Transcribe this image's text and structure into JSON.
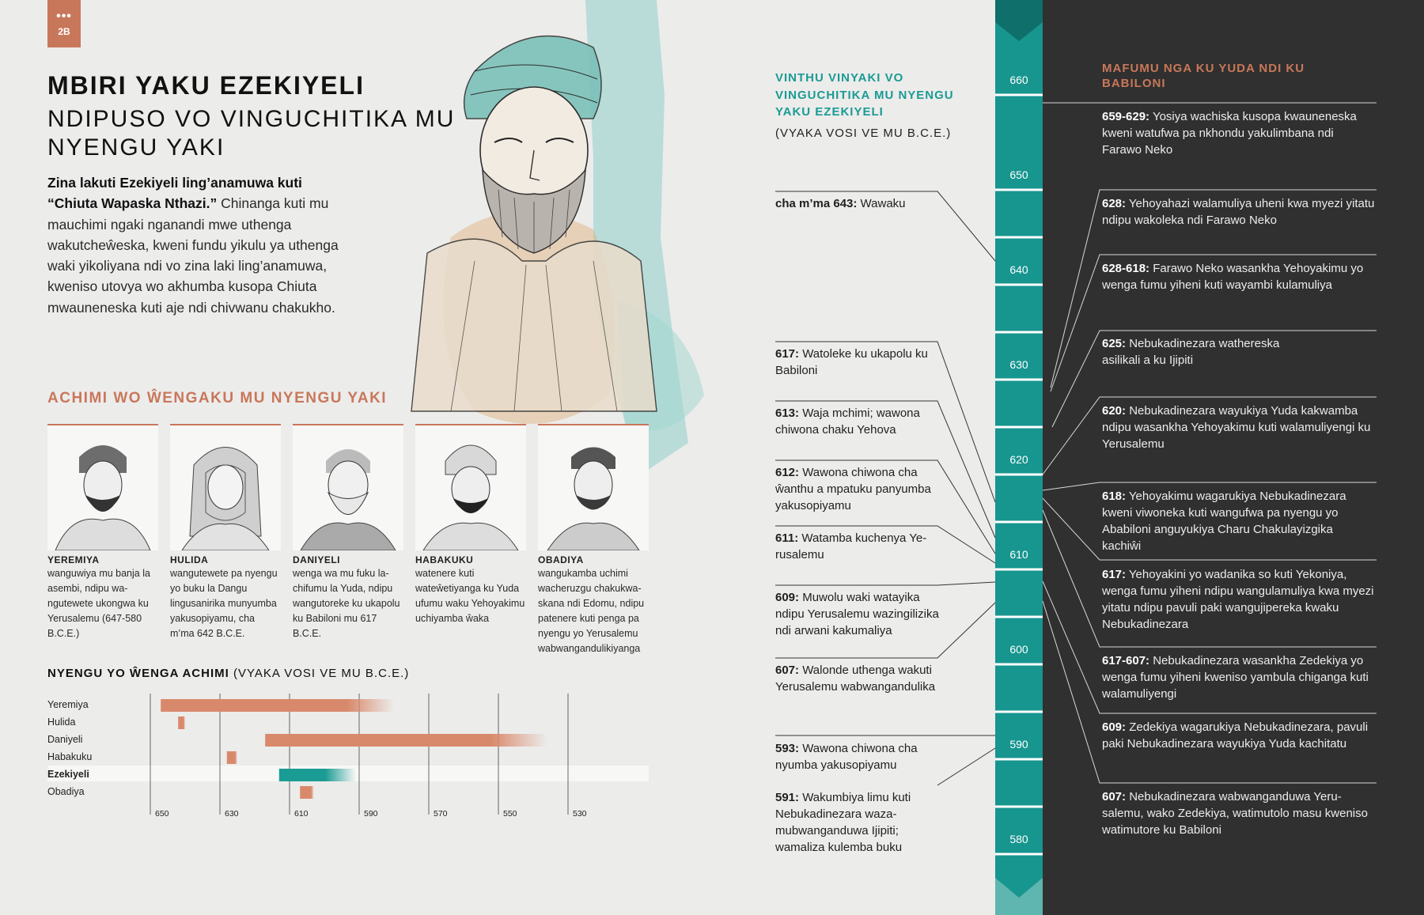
{
  "badge": {
    "dots": "•••",
    "number": "2B"
  },
  "title": "MBIRI YAKU EZEKIYELI",
  "subtitle": "NDIPUSO VO VINGUCHITIKA MU NYENGU YAKI",
  "intro": {
    "bold": "Zina lakuti Ezekiyeli ling’anamuwa kuti “Chiuta Wapaska Nthazi.”",
    "text": " Chinanga kuti mu mauchimi ngaki nganandi mwe uthenga wakutcheŵeska, kweni fundu yikulu ya uthenga waki yikoliyana ndi vo zina laki ling’anamuwa, kweniso utovya wo akhumba kusopa Chiuta mwauneneska kuti aje ndi chivwanu chakukho."
  },
  "prophets_heading": "ACHIMI WO ŴENGAKU MU NYENGU YAKI",
  "prophets": [
    {
      "name": "YEREMIYA",
      "desc": "wanguwiya mu banja la asembi, ndipu wa­ngutewete ukongwa ku Yerusalemu (647-580 B.C.E.)"
    },
    {
      "name": "HULIDA",
      "desc": "wangutewete pa nye­ngu yo buku la Dangu lingusanirika munyu­mba yakusopiyamu, cha m’ma 642 B.C.E."
    },
    {
      "name": "DANIYELI",
      "desc": "wenga wa mu fuku la­chifumu la Yuda, ndipu wangutoreke ku ukapo­lu ku Babiloni mu 617 B.C.E."
    },
    {
      "name": "HABAKUKU",
      "desc": "watenere kuti wateŵetiyanga ku Yuda ufumu waku Yehoyakimu uchiya­mba ŵaka"
    },
    {
      "name": "OBADIYA",
      "desc": "wangukamba uchimi wacheruzgu chakukwa­skana ndi Edomu, ndipu patenere kuti penga pa nyengu yo Yerusalemu wabwanga­ndulikiyanga"
    }
  ],
  "gantt_title": {
    "bold": "NYENGU YO ŴENGA ACHIMI",
    "rest": " (VYAKA VOSI VE MU B.C.E.)"
  },
  "chart_data": {
    "type": "bar",
    "title": "NYENGU YO ŴENGA ACHIMI (VYAKA VOSI VE MU B.C.E.)",
    "xlabel": "",
    "ylabel": "",
    "x_ticks": [
      650,
      630,
      610,
      590,
      570,
      550,
      530
    ],
    "xlim": [
      650,
      520
    ],
    "categories": [
      "Yeremiya",
      "Hulida",
      "Daniyeli",
      "Habakuku",
      "Ezekiyeli",
      "Obadiya"
    ],
    "highlight": "Ezekiyeli",
    "ranges": [
      [
        647,
        580
      ],
      [
        642,
        640
      ],
      [
        617,
        536
      ],
      [
        628,
        625
      ],
      [
        613,
        591
      ],
      [
        607,
        603
      ]
    ],
    "colors": {
      "bar": "#d9896b",
      "highlight": "#1a9b93"
    }
  },
  "middle": {
    "heading": "VINTHU VINYAKI VO VINGUCHITIKA MU NYENGU YAKU EZEKIYELI",
    "note": "(VYAKA VOSI VE MU B.C.E.)",
    "events": [
      {
        "label": "cha m’ma 643:",
        "text": " Wawaku"
      },
      {
        "label": "617:",
        "text": " Watoleke ku ukapolu ku Babiloni"
      },
      {
        "label": "613:",
        "text": " Waja mchimi; wawona chiwona chaku Yehova"
      },
      {
        "label": "612:",
        "text": " Wawona chiwona cha ŵanthu a mpatuku panyu­mba yakusopiyamu"
      },
      {
        "label": "611:",
        "text": " Watamba kuchenya Ye­rusalemu"
      },
      {
        "label": "609:",
        "text": " Muwolu waki watayika ndipu Yerusalemu wazingili­zika ndi arwani kakumaliya"
      },
      {
        "label": "607:",
        "text": " Walonde uthenga wakuti Yerusalemu wabwangandulika"
      },
      {
        "label": "593:",
        "text": " Wawona chiwona cha nyumba yakusopiyamu"
      },
      {
        "label": "591:",
        "text": " Wakumbiya limu kuti Nebukadinezara waza­mubwanganduwa Ijipiti; wamaliza kulemba buku"
      }
    ]
  },
  "years": [
    "660",
    "650",
    "640",
    "630",
    "620",
    "610",
    "600",
    "590",
    "580"
  ],
  "right": {
    "heading": "MAFUMU NGA KU YUDA NDI KU BABILONI",
    "kings": [
      {
        "label": "659-629:",
        "text": " Yosiya wachiska kusopa kwaunene­ska kweni watufwa pa nkhondu yakulimbana ndi Farawo Neko"
      },
      {
        "label": "628:",
        "text": " Yehoyahazi walamuliya uheni kwa myezi yitatu ndipu wakoleka ndi Farawo Neko"
      },
      {
        "label": "628-618:",
        "text": " Farawo Neko wasankha Yehoyakimu yo wenga fumu yiheni kuti wayambi kulamuliya"
      },
      {
        "label": "625:",
        "text": " Nebukadinezara wathereska asilikali a ku Ijipiti"
      },
      {
        "label": "620:",
        "text": " Nebukadinezara wayukiya Yuda ka­kwamba ndipu wasankha Yehoyakimu kuti walamuliyengi ku Yerusalemu"
      },
      {
        "label": "618:",
        "text": " Yehoyakimu wagarukiya Nebukadinezara kweni viwoneka kuti wangufwa pa nyengu yo Ababiloni anguyukiya Charu Chakulayizgika kachiŵi"
      },
      {
        "label": "617:",
        "text": " Yehoyakini yo wadanika so kuti Yekoniya, wenga fumu yiheni ndipu wangulamuliya kwa myezi yitatu ndipu pavuli paki wangujipereka kwaku Nebukadinezara"
      },
      {
        "label": "617-607:",
        "text": " Nebukadinezara wasankha Zedekiya yo wenga fumu yiheni kweniso yambula chiga­nga kuti walamuliyengi"
      },
      {
        "label": "609:",
        "text": " Zedekiya wagarukiya Nebukadinezara, pavuli paki Nebukadinezara wayukiya Yuda kachitatu"
      },
      {
        "label": "607:",
        "text": " Nebukadinezara wabwanganduwa Yeru­salemu, wako Zedekiya, watimutolo masu kweniso watimutore ku Babiloni"
      }
    ]
  }
}
